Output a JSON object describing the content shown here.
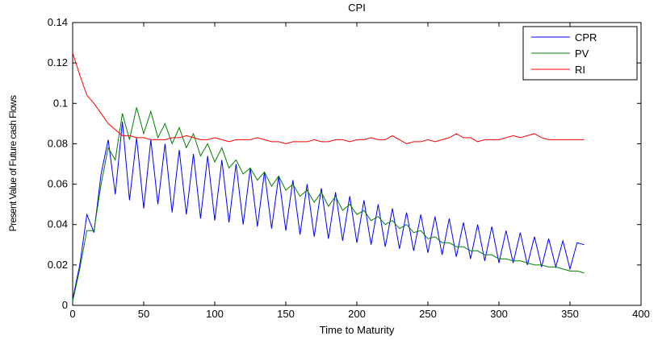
{
  "chart_data": {
    "type": "line",
    "title": "CPI",
    "xlabel": "Time to Maturity",
    "ylabel": "Present Value of Future cash Flows",
    "xlim": [
      0,
      400
    ],
    "ylim": [
      0,
      0.14
    ],
    "xticks": [
      "0",
      "50",
      "100",
      "150",
      "200",
      "250",
      "300",
      "350",
      "400"
    ],
    "yticks": [
      "0",
      "0.02",
      "0.04",
      "0.06",
      "0.08",
      "0.1",
      "0.12",
      "0.14"
    ],
    "grid": false,
    "legend_position": "top-right",
    "x": [
      0,
      5,
      10,
      15,
      20,
      25,
      30,
      35,
      40,
      45,
      50,
      55,
      60,
      65,
      70,
      75,
      80,
      85,
      90,
      95,
      100,
      105,
      110,
      115,
      120,
      125,
      130,
      135,
      140,
      145,
      150,
      155,
      160,
      165,
      170,
      175,
      180,
      185,
      190,
      195,
      200,
      205,
      210,
      215,
      220,
      225,
      230,
      235,
      240,
      245,
      250,
      255,
      260,
      265,
      270,
      275,
      280,
      285,
      290,
      295,
      300,
      305,
      310,
      315,
      320,
      325,
      330,
      335,
      340,
      345,
      350,
      355,
      360
    ],
    "series": [
      {
        "name": "CPR",
        "color": "#0000ff",
        "values": [
          0.003,
          0.02,
          0.045,
          0.036,
          0.065,
          0.082,
          0.055,
          0.091,
          0.052,
          0.083,
          0.048,
          0.082,
          0.05,
          0.08,
          0.046,
          0.077,
          0.045,
          0.075,
          0.043,
          0.074,
          0.042,
          0.072,
          0.041,
          0.07,
          0.04,
          0.068,
          0.039,
          0.066,
          0.038,
          0.064,
          0.037,
          0.062,
          0.035,
          0.06,
          0.034,
          0.058,
          0.033,
          0.056,
          0.032,
          0.054,
          0.031,
          0.052,
          0.03,
          0.05,
          0.029,
          0.048,
          0.028,
          0.046,
          0.027,
          0.045,
          0.026,
          0.044,
          0.025,
          0.043,
          0.024,
          0.041,
          0.023,
          0.04,
          0.022,
          0.039,
          0.021,
          0.037,
          0.021,
          0.036,
          0.02,
          0.034,
          0.019,
          0.033,
          0.019,
          0.032,
          0.018,
          0.031,
          0.03
        ]
      },
      {
        "name": "PV",
        "color": "#008000",
        "values": [
          0.002,
          0.018,
          0.037,
          0.037,
          0.06,
          0.078,
          0.072,
          0.095,
          0.082,
          0.098,
          0.085,
          0.096,
          0.083,
          0.09,
          0.08,
          0.088,
          0.078,
          0.085,
          0.074,
          0.08,
          0.071,
          0.078,
          0.068,
          0.072,
          0.065,
          0.068,
          0.062,
          0.066,
          0.059,
          0.064,
          0.057,
          0.06,
          0.054,
          0.057,
          0.051,
          0.056,
          0.049,
          0.054,
          0.047,
          0.05,
          0.045,
          0.047,
          0.042,
          0.044,
          0.04,
          0.042,
          0.038,
          0.04,
          0.036,
          0.037,
          0.033,
          0.034,
          0.031,
          0.031,
          0.029,
          0.029,
          0.027,
          0.027,
          0.025,
          0.025,
          0.023,
          0.023,
          0.022,
          0.022,
          0.021,
          0.02,
          0.02,
          0.019,
          0.019,
          0.018,
          0.017,
          0.017,
          0.016
        ]
      },
      {
        "name": "RI",
        "color": "#ff0000",
        "values": [
          0.125,
          0.114,
          0.104,
          0.1,
          0.095,
          0.09,
          0.087,
          0.084,
          0.084,
          0.083,
          0.083,
          0.082,
          0.082,
          0.082,
          0.083,
          0.083,
          0.084,
          0.083,
          0.082,
          0.082,
          0.083,
          0.082,
          0.081,
          0.082,
          0.082,
          0.082,
          0.083,
          0.082,
          0.081,
          0.081,
          0.08,
          0.081,
          0.081,
          0.081,
          0.082,
          0.081,
          0.081,
          0.082,
          0.082,
          0.081,
          0.082,
          0.082,
          0.083,
          0.082,
          0.082,
          0.084,
          0.082,
          0.08,
          0.081,
          0.081,
          0.082,
          0.081,
          0.082,
          0.083,
          0.085,
          0.083,
          0.083,
          0.081,
          0.082,
          0.082,
          0.082,
          0.083,
          0.084,
          0.083,
          0.084,
          0.085,
          0.083,
          0.082,
          0.082,
          0.082,
          0.082,
          0.082,
          0.082
        ]
      }
    ]
  }
}
